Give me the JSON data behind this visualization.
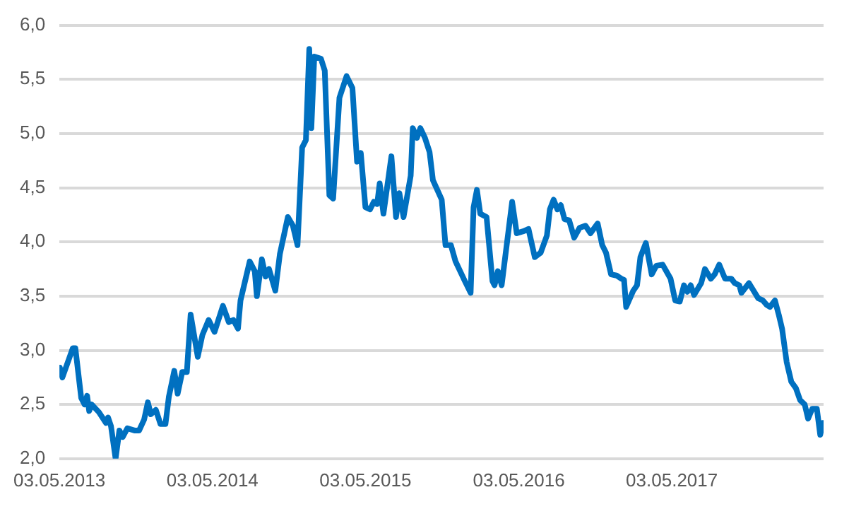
{
  "chart_data": {
    "type": "line",
    "x": [
      "2013-05-04",
      "2013-05-10",
      "2013-06-04",
      "2013-06-10",
      "2013-06-24",
      "2013-07-02",
      "2013-07-08",
      "2013-07-13",
      "2013-07-19",
      "2013-08-05",
      "2013-08-22",
      "2013-08-27",
      "2013-09-03",
      "2013-09-14",
      "2013-09-23",
      "2013-10-01",
      "2013-10-12",
      "2013-10-29",
      "2013-11-09",
      "2013-11-21",
      "2013-11-30",
      "2013-12-07",
      "2013-12-19",
      "2013-12-30",
      "2014-01-11",
      "2014-01-19",
      "2014-02-01",
      "2014-02-09",
      "2014-02-20",
      "2014-03-03",
      "2014-03-12",
      "2014-03-29",
      "2014-04-09",
      "2014-04-24",
      "2014-05-08",
      "2014-05-28",
      "2014-06-11",
      "2014-06-22",
      "2014-07-03",
      "2014-07-09",
      "2014-07-31",
      "2014-08-12",
      "2014-08-17",
      "2014-08-29",
      "2014-09-07",
      "2014-09-15",
      "2014-09-30",
      "2014-10-11",
      "2014-10-30",
      "2014-11-11",
      "2014-11-22",
      "2014-12-03",
      "2014-12-12",
      "2014-12-20",
      "2014-12-25",
      "2015-01-01",
      "2015-01-17",
      "2015-01-26",
      "2015-02-06",
      "2015-02-15",
      "2015-03-02",
      "2015-03-19",
      "2015-04-02",
      "2015-04-13",
      "2015-04-22",
      "2015-05-03",
      "2015-05-14",
      "2015-05-23",
      "2015-05-31",
      "2015-06-06",
      "2015-06-15",
      "2015-07-04",
      "2015-07-15",
      "2015-07-23",
      "2015-08-02",
      "2015-08-19",
      "2015-08-24",
      "2015-09-03",
      "2015-09-11",
      "2015-09-22",
      "2015-10-03",
      "2015-10-11",
      "2015-11-01",
      "2015-11-10",
      "2015-11-23",
      "2015-12-04",
      "2015-12-15",
      "2015-12-26",
      "2016-01-09",
      "2016-01-16",
      "2016-01-24",
      "2016-02-01",
      "2016-02-16",
      "2016-03-01",
      "2016-03-06",
      "2016-03-14",
      "2016-03-23",
      "2016-04-17",
      "2016-04-28",
      "2016-05-15",
      "2016-05-26",
      "2016-06-10",
      "2016-06-24",
      "2016-07-09",
      "2016-07-16",
      "2016-07-25",
      "2016-08-03",
      "2016-08-11",
      "2016-08-20",
      "2016-08-31",
      "2016-09-12",
      "2016-09-25",
      "2016-10-09",
      "2016-10-21",
      "2016-11-07",
      "2016-11-18",
      "2016-11-27",
      "2016-12-09",
      "2016-12-22",
      "2017-01-03",
      "2017-01-09",
      "2017-01-14",
      "2017-01-31",
      "2017-02-09",
      "2017-02-17",
      "2017-03-02",
      "2017-03-16",
      "2017-03-27",
      "2017-04-11",
      "2017-04-30",
      "2017-05-11",
      "2017-05-22",
      "2017-06-01",
      "2017-06-09",
      "2017-06-17",
      "2017-06-25",
      "2017-07-12",
      "2017-07-21",
      "2017-08-04",
      "2017-08-13",
      "2017-08-24",
      "2017-09-07",
      "2017-09-22",
      "2017-09-30",
      "2017-10-11",
      "2017-10-16",
      "2017-11-03",
      "2017-11-25",
      "2017-12-06",
      "2017-12-15",
      "2017-12-23",
      "2018-01-04",
      "2018-01-13",
      "2018-01-21",
      "2018-02-01",
      "2018-02-12",
      "2018-02-23",
      "2018-03-05",
      "2018-03-16",
      "2018-03-24",
      "2018-04-03",
      "2018-04-14",
      "2018-04-22",
      "2018-04-28"
    ],
    "series": [
      {
        "color": "#0070c0",
        "values": [
          2.84,
          2.75,
          3.02,
          3.02,
          2.56,
          2.5,
          2.58,
          2.44,
          2.5,
          2.43,
          2.33,
          2.38,
          2.3,
          2.0,
          2.26,
          2.2,
          2.28,
          2.26,
          2.26,
          2.36,
          2.52,
          2.41,
          2.45,
          2.32,
          2.32,
          2.57,
          2.81,
          2.6,
          2.8,
          2.8,
          3.33,
          2.94,
          3.14,
          3.28,
          3.17,
          3.41,
          3.26,
          3.28,
          3.2,
          3.46,
          3.82,
          3.73,
          3.5,
          3.84,
          3.68,
          3.75,
          3.55,
          3.89,
          4.23,
          4.15,
          3.97,
          4.87,
          4.94,
          5.78,
          5.05,
          5.71,
          5.69,
          5.58,
          4.43,
          4.4,
          5.33,
          5.53,
          5.42,
          4.74,
          4.82,
          4.32,
          4.3,
          4.37,
          4.35,
          4.54,
          4.26,
          4.79,
          4.23,
          4.45,
          4.23,
          4.61,
          5.05,
          4.96,
          5.05,
          4.96,
          4.83,
          4.57,
          4.39,
          3.97,
          3.97,
          3.82,
          3.73,
          3.64,
          3.53,
          4.32,
          4.48,
          4.26,
          4.23,
          3.64,
          3.6,
          3.73,
          3.6,
          4.37,
          4.08,
          4.1,
          4.12,
          3.86,
          3.9,
          4.06,
          4.3,
          4.39,
          4.3,
          4.34,
          4.21,
          4.2,
          4.04,
          4.13,
          4.15,
          4.08,
          4.17,
          3.97,
          3.9,
          3.7,
          3.69,
          3.66,
          3.65,
          3.4,
          3.55,
          3.6,
          3.86,
          3.99,
          3.7,
          3.78,
          3.79,
          3.66,
          3.46,
          3.45,
          3.6,
          3.54,
          3.6,
          3.51,
          3.62,
          3.75,
          3.66,
          3.7,
          3.79,
          3.66,
          3.66,
          3.62,
          3.6,
          3.53,
          3.62,
          3.48,
          3.46,
          3.42,
          3.4,
          3.46,
          3.33,
          3.2,
          2.89,
          2.71,
          2.65,
          2.54,
          2.5,
          2.37,
          2.46,
          2.46,
          2.22,
          2.33
        ]
      }
    ],
    "xlim": [
      "2013-05-03",
      "2018-04-30"
    ],
    "xticks": [
      {
        "value": "2013-05-03",
        "label": "03.05.2013"
      },
      {
        "value": "2014-05-03",
        "label": "03.05.2014"
      },
      {
        "value": "2015-05-03",
        "label": "03.05.2015"
      },
      {
        "value": "2016-05-03",
        "label": "03.05.2016"
      },
      {
        "value": "2017-05-03",
        "label": "03.05.2017"
      }
    ],
    "ylim": [
      2,
      6
    ],
    "yticks": [
      {
        "value": 2,
        "label": "2,0"
      },
      {
        "value": 2.5,
        "label": "2,5"
      },
      {
        "value": 3,
        "label": "3,0"
      },
      {
        "value": 3.5,
        "label": "3,5"
      },
      {
        "value": 4,
        "label": "4,0"
      },
      {
        "value": 4.5,
        "label": "4,5"
      },
      {
        "value": 5,
        "label": "5,0"
      },
      {
        "value": 5.5,
        "label": "5,5"
      },
      {
        "value": 6,
        "label": "6,0"
      }
    ],
    "grid": "y",
    "legend": false,
    "marker": "none",
    "line_style": "solid"
  }
}
